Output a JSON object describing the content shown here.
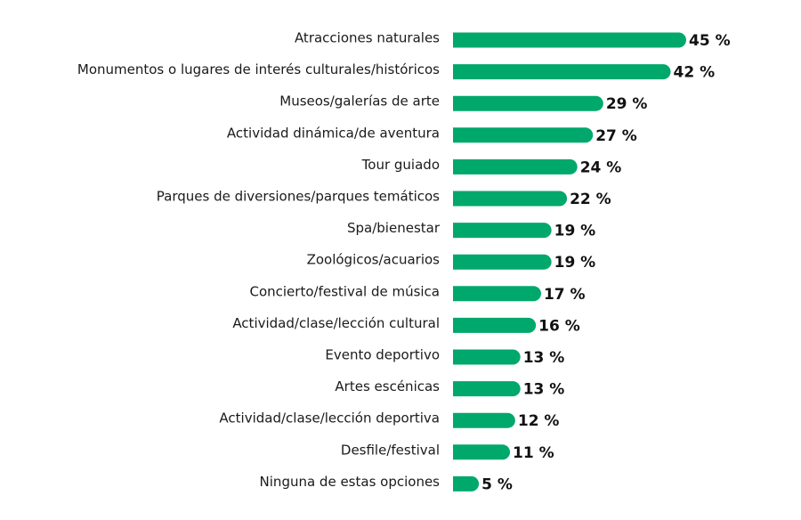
{
  "chart_data": {
    "type": "bar",
    "orientation": "horizontal",
    "categories": [
      "Atracciones naturales",
      "Monumentos o lugares de interés culturales/históricos",
      "Museos/galerías de arte",
      "Actividad dinámica/de aventura",
      "Tour guiado",
      "Parques de diversiones/parques temáticos",
      "Spa/bienestar",
      "Zoológicos/acuarios",
      "Concierto/festival de música",
      "Actividad/clase/lección cultural",
      "Evento deportivo",
      "Artes escénicas",
      "Actividad/clase/lección deportiva",
      "Desfile/festival",
      "Ninguna de estas opciones"
    ],
    "values": [
      45,
      42,
      29,
      27,
      24,
      22,
      19,
      19,
      17,
      16,
      13,
      13,
      12,
      11,
      5
    ],
    "value_labels": [
      "45 %",
      "42 %",
      "29 %",
      "27 %",
      "24 %",
      "22 %",
      "19 %",
      "19 %",
      "17 %",
      "16 %",
      "13 %",
      "13 %",
      "12 %",
      "11 %",
      "5 %"
    ],
    "xlim": [
      0,
      45
    ],
    "grid": false,
    "legend": "none",
    "bar_color": "#00a86b"
  }
}
